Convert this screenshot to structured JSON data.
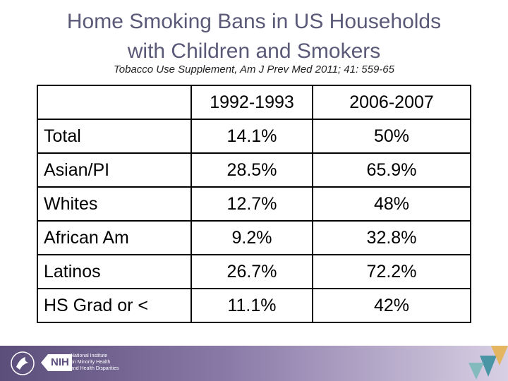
{
  "title_lines": [
    "Home Smoking Bans in US Households",
    "with Children and Smokers"
  ],
  "subtitle": "Tobacco Use Supplement, Am J Prev Med 2011; 41: 559-65",
  "table": {
    "columns": [
      "",
      "1992-1993",
      "2006-2007"
    ],
    "rows": [
      {
        "label": "Total",
        "v1": "14.1%",
        "v2": "50%"
      },
      {
        "label": "Asian/PI",
        "v1": "28.5%",
        "v2": "65.9%"
      },
      {
        "label": "Whites",
        "v1": "12.7%",
        "v2": "48%"
      },
      {
        "label": "African Am",
        "v1": "9.2%",
        "v2": "32.8%"
      },
      {
        "label": "Latinos",
        "v1": "26.7%",
        "v2": "72.2%"
      },
      {
        "label": "HS Grad or <",
        "v1": "11.1%",
        "v2": "42%"
      }
    ]
  },
  "footer": {
    "nih_mark": "NIH",
    "institute_lines": [
      "National Institute",
      "on Minority Health",
      "and Health Disparities"
    ]
  },
  "colors": {
    "title": "#5a5a78",
    "footer_dark": "#5b4e7a"
  }
}
